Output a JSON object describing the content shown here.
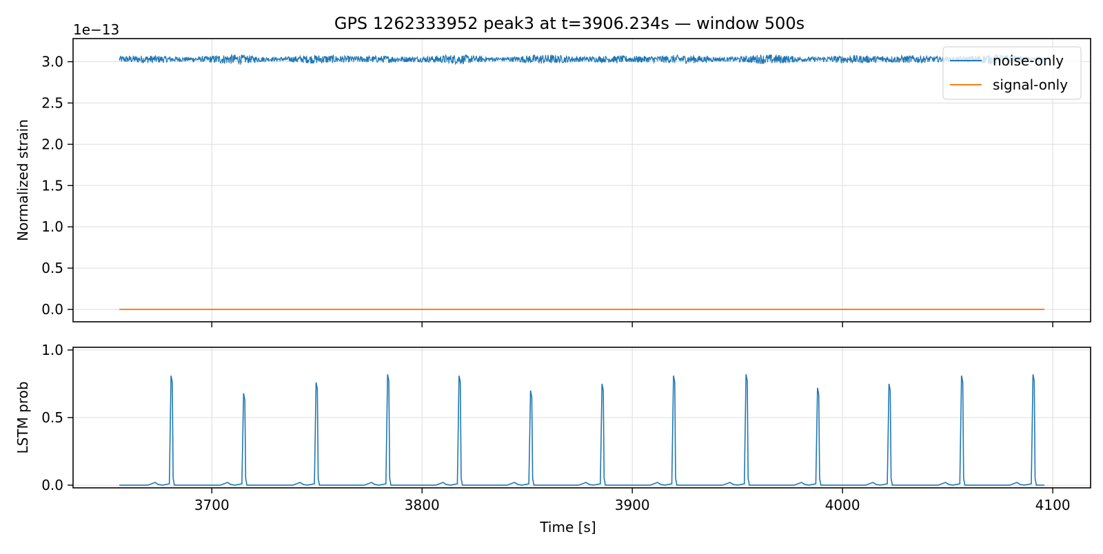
{
  "figure": {
    "title": "GPS 1262333952 peak3 at t=3906.234s — window 500s"
  },
  "chart_data": [
    {
      "type": "line",
      "title": "GPS 1262333952 peak3 at t=3906.234s — window 500s",
      "xlabel": "",
      "ylabel": "Normalized strain",
      "offset_label": "1e−13",
      "xlim": [
        3634,
        4118
      ],
      "ylim": [
        -0.15,
        3.28
      ],
      "x_ticks": [
        3700,
        3800,
        3900,
        4000,
        4100
      ],
      "y_ticks": [
        0.0,
        0.5,
        1.0,
        1.5,
        2.0,
        2.5,
        3.0
      ],
      "y_tick_labels": [
        "0.0",
        "0.5",
        "1.0",
        "1.5",
        "2.0",
        "2.5",
        "3.0"
      ],
      "grid": true,
      "legend": "top-right",
      "series": [
        {
          "name": "noise-only",
          "color": "#1f77b4",
          "x_range": [
            3656,
            4096
          ],
          "mean": 3.03,
          "amplitude": 0.06
        },
        {
          "name": "signal-only",
          "color": "#ff7f0e",
          "x": [
            3656,
            4096
          ],
          "y": [
            0.0,
            0.0
          ]
        }
      ]
    },
    {
      "type": "line",
      "title": "",
      "xlabel": "Time [s]",
      "ylabel": "LSTM prob",
      "xlim": [
        3634,
        4118
      ],
      "ylim": [
        -0.02,
        1.02
      ],
      "x_ticks": [
        3700,
        3800,
        3900,
        4000,
        4100
      ],
      "x_tick_labels": [
        "3700",
        "3800",
        "3900",
        "4000",
        "4100"
      ],
      "y_ticks": [
        0.0,
        0.5,
        1.0
      ],
      "y_tick_labels": [
        "0.0",
        "0.5",
        "1.0"
      ],
      "grid": true,
      "series": [
        {
          "name": "",
          "color": "#1f77b4",
          "x_range": [
            3656,
            4096
          ],
          "peaks_x": [
            3681,
            3715.5,
            3750,
            3784,
            3818,
            3852,
            3886,
            3920,
            3954.5,
            3988.5,
            4022.5,
            4057,
            4091
          ],
          "peaks_y": [
            0.81,
            0.68,
            0.76,
            0.82,
            0.81,
            0.7,
            0.75,
            0.81,
            0.82,
            0.72,
            0.75,
            0.81,
            0.82
          ],
          "bumps_x": [
            3673,
            3707.5,
            3742,
            3776,
            3810,
            3844,
            3878,
            3912,
            3946.5,
            3980.5,
            4014.5,
            4049,
            4083
          ],
          "bump_height": 0.02
        }
      ]
    }
  ]
}
